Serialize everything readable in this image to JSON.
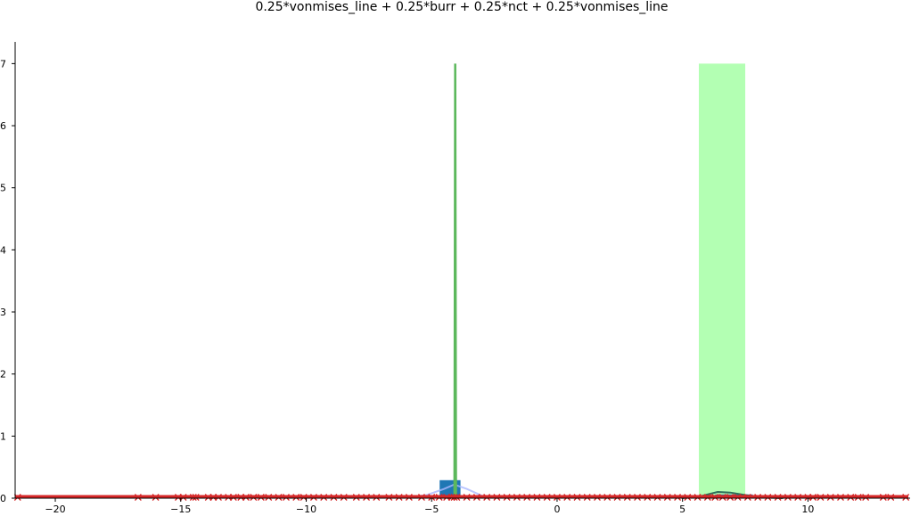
{
  "chart_data": {
    "type": "mixed",
    "title": "0.25*vonmises_line + 0.25*burr + 0.25*nct + 0.25*vonmises_line",
    "xlabel": "",
    "ylabel": "",
    "xlim": [
      -21.6,
      14.0
    ],
    "ylim": [
      0,
      7.35
    ],
    "x_ticks": [
      -20,
      -15,
      -10,
      -5,
      0,
      5,
      10
    ],
    "x_tick_labels": [
      "−20",
      "−15",
      "−10",
      "−5",
      "0",
      "5",
      "10"
    ],
    "y_ticks": [
      0,
      1,
      2,
      3,
      4,
      5,
      6,
      7
    ],
    "y_tick_labels": [
      "0",
      "1",
      "2",
      "3",
      "4",
      "5",
      "6",
      "7"
    ],
    "grid": false,
    "colors": {
      "histogram": "#1f77b4",
      "green_line": "#5cb85c",
      "light_green_band": "#b3ffb3",
      "light_blue_curve": "#aab8ff",
      "dark_curve": "#2d6e5a",
      "samples": "#d62728"
    },
    "histogram": [
      {
        "x0": -4.68,
        "x1": -3.85,
        "height": 0.29
      },
      {
        "x0": 6.3,
        "x1": 7.8,
        "height": 0.06
      }
    ],
    "shaded_band": {
      "x0": 5.65,
      "x1": 7.5,
      "height": 7.0
    },
    "green_spike": {
      "x": -4.06,
      "height": 7.0,
      "width": 0.03
    },
    "light_blue_curve": [
      [
        -21.6,
        0.01
      ],
      [
        -6,
        0.01
      ],
      [
        -5.2,
        0.05
      ],
      [
        -4.5,
        0.15
      ],
      [
        -4.1,
        0.22
      ],
      [
        -3.6,
        0.15
      ],
      [
        -3.0,
        0.04
      ],
      [
        -2.4,
        0.01
      ],
      [
        14,
        0.01
      ]
    ],
    "dark_curve": [
      [
        5.0,
        0.0
      ],
      [
        5.8,
        0.04
      ],
      [
        6.4,
        0.1
      ],
      [
        6.9,
        0.09
      ],
      [
        7.5,
        0.05
      ],
      [
        8.2,
        0.01
      ],
      [
        9.0,
        0.0
      ]
    ],
    "sample_markers": [
      -21.5,
      -16.7,
      -16.0,
      -15.1,
      -14.9,
      -14.5,
      -14.4,
      -13.9,
      -13.7,
      -13.5,
      -13.1,
      -12.9,
      -12.6,
      -12.4,
      -12.1,
      -11.8,
      -11.5,
      -11.1,
      -10.8,
      -10.4,
      -10.1,
      -9.7,
      -9.3,
      -8.9,
      -8.5,
      -8.0,
      -7.6,
      -7.2,
      -6.7,
      -6.3,
      -5.9,
      -5.4,
      -5.0,
      -4.7,
      -4.4,
      -4.2,
      -4.1,
      -4.0,
      -3.6,
      -3.2,
      -2.8,
      -2.4,
      -2.0,
      -1.6,
      -1.2,
      -0.8,
      -0.4,
      0.0,
      0.4,
      0.8,
      1.2,
      1.6,
      2.0,
      2.4,
      2.8,
      3.2,
      3.6,
      4.0,
      4.4,
      4.8,
      5.2,
      5.6,
      6.0,
      6.3,
      6.6,
      6.9,
      7.2,
      7.6,
      8.0,
      8.4,
      8.8,
      9.2,
      9.6,
      10.0,
      10.2,
      10.5,
      10.9,
      11.3,
      11.7,
      12.0,
      12.3,
      13.0,
      13.3,
      13.9
    ]
  }
}
